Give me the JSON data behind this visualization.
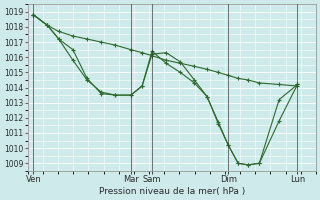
{
  "title": "",
  "xlabel": "Pression niveau de la mer( hPa )",
  "ylabel": "",
  "bg_color": "#ceeaea",
  "grid_color": "#ffffff",
  "line_color": "#2d6a2d",
  "ylim": [
    1008.5,
    1019.5
  ],
  "yticks": [
    1009,
    1010,
    1011,
    1012,
    1013,
    1014,
    1015,
    1016,
    1017,
    1018,
    1019
  ],
  "xtick_labels": [
    "Ven",
    "Mar",
    "Sam",
    "Dim",
    "Lun"
  ],
  "xtick_positions": [
    0.0,
    0.345,
    0.42,
    0.69,
    0.935
  ],
  "vline_positions": [
    0.0,
    0.345,
    0.42,
    0.69,
    0.935
  ],
  "lines": [
    {
      "x": [
        0.0,
        0.05,
        0.09,
        0.14,
        0.19,
        0.24,
        0.29,
        0.345,
        0.385,
        0.42,
        0.47,
        0.52,
        0.57,
        0.615,
        0.655,
        0.69,
        0.725,
        0.76,
        0.8,
        0.87,
        0.935
      ],
      "y": [
        1018.8,
        1018.1,
        1017.7,
        1017.4,
        1017.2,
        1017.0,
        1016.8,
        1016.5,
        1016.3,
        1016.1,
        1015.8,
        1015.6,
        1015.4,
        1015.2,
        1015.0,
        1014.8,
        1014.6,
        1014.5,
        1014.3,
        1014.2,
        1014.1
      ]
    },
    {
      "x": [
        0.0,
        0.05,
        0.09,
        0.14,
        0.19,
        0.24,
        0.29,
        0.345,
        0.385,
        0.42,
        0.47,
        0.52,
        0.57,
        0.615,
        0.655,
        0.69,
        0.725,
        0.76,
        0.8,
        0.87,
        0.935
      ],
      "y": [
        1018.8,
        1018.1,
        1017.2,
        1015.8,
        1014.5,
        1013.7,
        1013.5,
        1013.5,
        1014.1,
        1016.2,
        1016.3,
        1015.7,
        1014.5,
        1013.4,
        1011.7,
        1010.2,
        1009.0,
        1008.9,
        1009.0,
        1013.2,
        1014.2
      ]
    },
    {
      "x": [
        0.0,
        0.05,
        0.09,
        0.14,
        0.19,
        0.24,
        0.29,
        0.345,
        0.385,
        0.42,
        0.47,
        0.52,
        0.57,
        0.615,
        0.655,
        0.69,
        0.725,
        0.76,
        0.8,
        0.87,
        0.935
      ],
      "y": [
        1018.8,
        1018.1,
        1017.2,
        1016.5,
        1014.6,
        1013.6,
        1013.5,
        1013.5,
        1014.1,
        1016.4,
        1015.6,
        1015.0,
        1014.3,
        1013.4,
        1011.6,
        1010.2,
        1009.0,
        1008.9,
        1009.0,
        1011.8,
        1014.2
      ]
    }
  ],
  "figsize": [
    3.2,
    2.0
  ],
  "dpi": 100
}
